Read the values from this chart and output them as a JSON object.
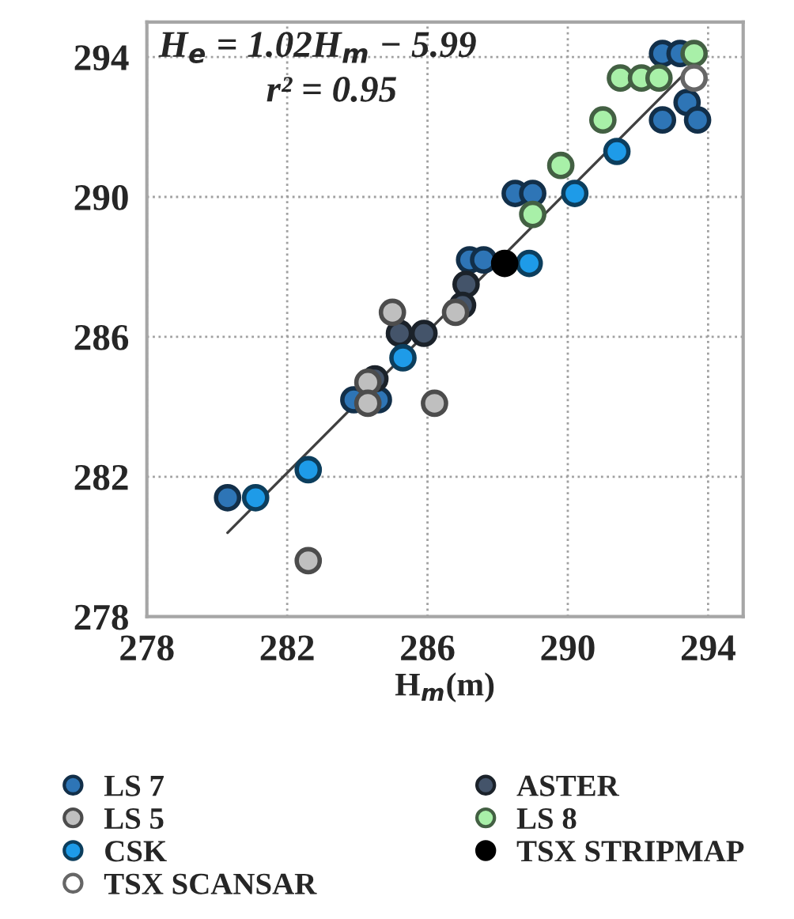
{
  "chart_data": {
    "type": "scatter",
    "xlabel": "H$_{m}$(m)",
    "xlim": [
      278,
      295
    ],
    "ylim": [
      278,
      295
    ],
    "xticks": [
      278,
      282,
      286,
      290,
      294
    ],
    "yticks": [
      278,
      282,
      286,
      290,
      294
    ],
    "grid": true,
    "legend": "bottom",
    "marker": "circle",
    "annotations": [
      "H$_{e}$ = 1.02H$_{m}$ − 5.99",
      "r² = 0.95"
    ],
    "series": [
      {
        "name": "LS 7",
        "color": "#2e75b6",
        "x": [
          292.7,
          293.2,
          293.4,
          292.7,
          293.7,
          288.5,
          289.0,
          287.2,
          287.6,
          283.9,
          284.6,
          280.3
        ],
        "values": [
          294.1,
          294.1,
          292.7,
          292.2,
          292.2,
          290.1,
          290.1,
          288.2,
          288.2,
          284.2,
          284.2,
          281.4
        ]
      },
      {
        "name": "ASTER",
        "color": "#44546a",
        "x": [
          287.1,
          285.2,
          285.9,
          287.0,
          284.5
        ],
        "values": [
          287.5,
          286.1,
          286.1,
          286.9,
          284.8
        ]
      },
      {
        "name": "LS 5",
        "color": "#bfbfbf",
        "x": [
          285.0,
          286.8,
          284.3,
          284.3,
          286.2,
          282.6
        ],
        "values": [
          286.7,
          286.7,
          284.7,
          284.1,
          284.1,
          279.6
        ]
      },
      {
        "name": "LS 8",
        "color": "#a8f0a8",
        "x": [
          293.6,
          291.5,
          292.1,
          292.6,
          291.0,
          289.8,
          289.0
        ],
        "values": [
          294.1,
          293.4,
          293.4,
          293.4,
          292.2,
          290.9,
          289.5
        ]
      },
      {
        "name": "CSK",
        "color": "#1e9be8",
        "x": [
          291.4,
          290.2,
          288.9,
          285.3,
          282.6,
          281.1
        ],
        "values": [
          291.3,
          290.1,
          288.1,
          285.4,
          282.2,
          281.4
        ]
      },
      {
        "name": "TSX STRIPMAP",
        "color": "#000000",
        "x": [
          288.2
        ],
        "values": [
          288.1
        ]
      },
      {
        "name": "TSX SCANSAR",
        "color": "#ffffff",
        "x": [
          293.6
        ],
        "values": [
          293.4
        ]
      },
      {
        "type": "line",
        "marker": "none",
        "color": "#404040",
        "x": [
          280.3,
          293.4
        ],
        "values": [
          280.4,
          293.6
        ]
      }
    ]
  }
}
